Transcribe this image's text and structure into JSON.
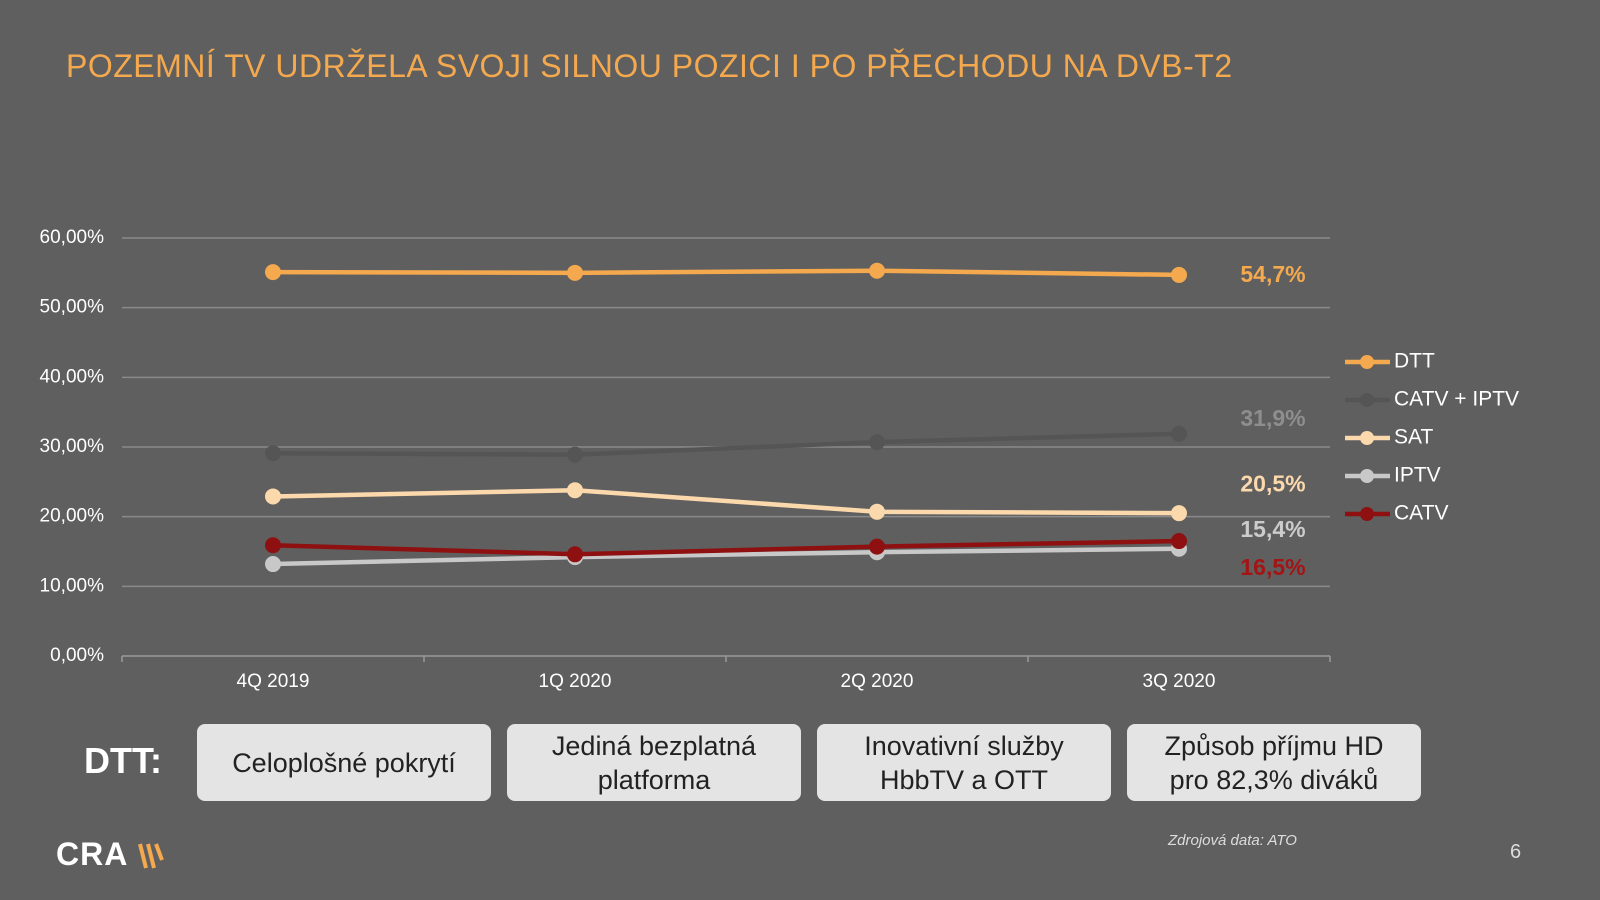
{
  "title": "POZEMNÍ TV UDRŽELA SVOJI SILNOU POZICI I PO PŘECHODU NA DVB-T2",
  "chart_data": {
    "type": "line",
    "categories": [
      "4Q 2019",
      "1Q 2020",
      "2Q 2020",
      "3Q 2020"
    ],
    "ylim": [
      0,
      60
    ],
    "yticks": [
      {
        "value": 0,
        "label": "0,00%"
      },
      {
        "value": 10,
        "label": "10,00%"
      },
      {
        "value": 20,
        "label": "20,00%"
      },
      {
        "value": 30,
        "label": "30,00%"
      },
      {
        "value": 40,
        "label": "40,00%"
      },
      {
        "value": 50,
        "label": "50,00%"
      },
      {
        "value": 60,
        "label": "60,00%"
      }
    ],
    "grid": true,
    "legend": "right",
    "series": [
      {
        "name": "DTT",
        "color": "#f5a94e",
        "label_color": "#f5a94e",
        "values": [
          55.1,
          55.0,
          55.3,
          54.7
        ],
        "value_labels": [
          null,
          null,
          null,
          "54,7%"
        ]
      },
      {
        "name": "CATV + IPTV",
        "color": "#555555",
        "label_color": "#8e8e8e",
        "values": [
          29.1,
          28.9,
          30.7,
          31.9
        ],
        "value_labels": [
          null,
          null,
          null,
          "31,9%"
        ]
      },
      {
        "name": "SAT",
        "color": "#fcd9ac",
        "label_color": "#fcd9ac",
        "values": [
          22.9,
          23.8,
          20.7,
          20.5
        ],
        "value_labels": [
          null,
          null,
          null,
          "20,5%"
        ]
      },
      {
        "name": "IPTV",
        "color": "#c8c8c8",
        "label_color": "#cccccc",
        "values": [
          13.2,
          14.2,
          14.9,
          15.4
        ],
        "value_labels": [
          null,
          null,
          null,
          "15,4%"
        ]
      },
      {
        "name": "CATV",
        "color": "#8e1010",
        "label_color": "#a31414",
        "values": [
          15.9,
          14.6,
          15.7,
          16.5
        ],
        "value_labels": [
          null,
          null,
          null,
          "16,5%"
        ]
      }
    ]
  },
  "dtt_label": "DTT:",
  "boxes": [
    [
      "Celoplošné pokrytí"
    ],
    [
      "Jediná bezplatná",
      "platforma"
    ],
    [
      "Inovativní služby",
      "HbbTV a OTT"
    ],
    [
      "Způsob příjmu HD",
      "pro 82,3% diváků"
    ]
  ],
  "source": "Zdrojová data: ATO",
  "page_number": "6",
  "logo": "CRA"
}
